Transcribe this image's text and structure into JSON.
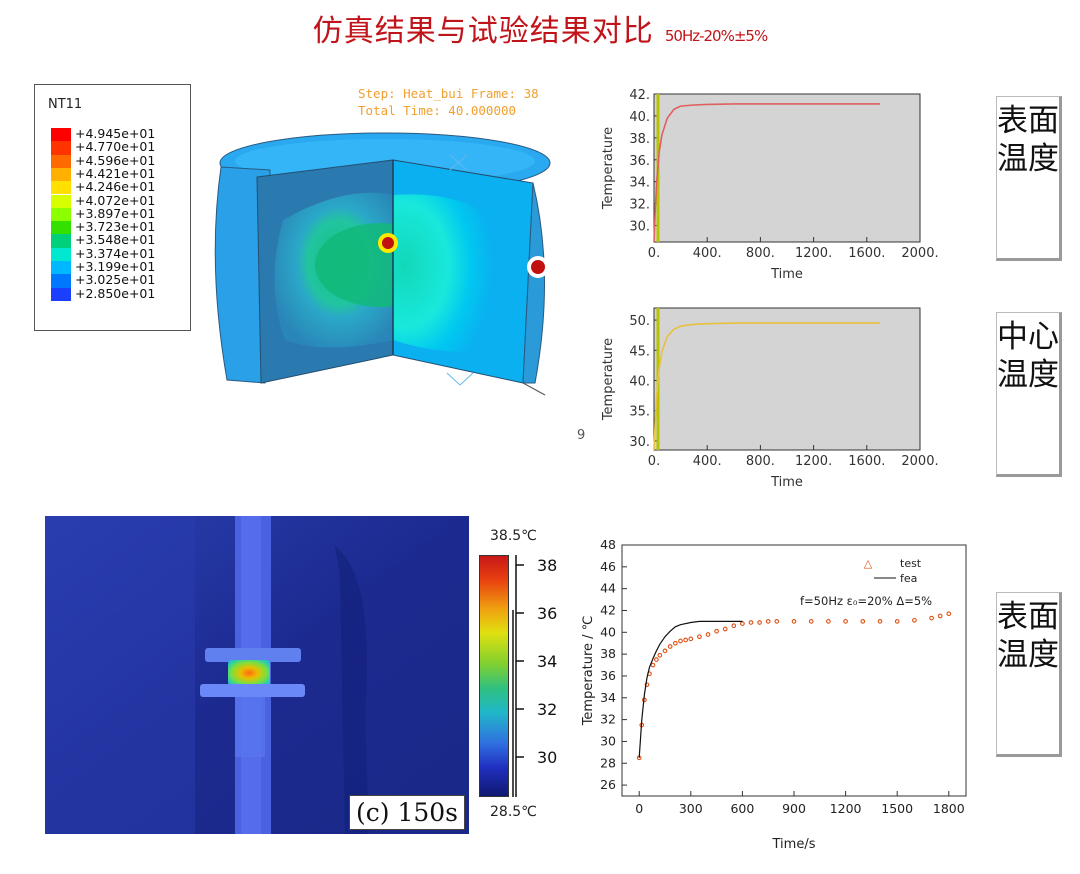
{
  "title": {
    "main": "仿真结果与试验结果对比",
    "sub": "50Hz-20%±5%"
  },
  "sim_legend": {
    "variable": "NT11",
    "entries": [
      "+4.945e+01",
      "+4.770e+01",
      "+4.596e+01",
      "+4.421e+01",
      "+4.246e+01",
      "+4.072e+01",
      "+3.897e+01",
      "+3.723e+01",
      "+3.548e+01",
      "+3.374e+01",
      "+3.199e+01",
      "+3.025e+01",
      "+2.850e+01"
    ],
    "colors": [
      "#ff0000",
      "#ff3300",
      "#ff6a00",
      "#ffb000",
      "#ffe000",
      "#d8ff00",
      "#8cff00",
      "#33e000",
      "#00d07a",
      "#00e8d0",
      "#00b8ff",
      "#0077ff",
      "#1a3fff"
    ]
  },
  "sim_header": {
    "step": "Step: Heat_bui Frame: 38",
    "total_time": "Total Time: 40.000000"
  },
  "side_labels": {
    "surface": "表面温度",
    "center": "中心温度",
    "surface2": "表面温度"
  },
  "stray_mark": "9",
  "thermal_image": {
    "caption": "(c) 150s",
    "scale_max": "38.5℃",
    "scale_min": "28.5℃",
    "scale_ticks": [
      "38",
      "36",
      "34",
      "32",
      "30"
    ]
  },
  "chart_data": [
    {
      "type": "line",
      "name": "surface-temperature-sim",
      "title": "",
      "xlabel": "Time",
      "ylabel": "Temperature",
      "xlim": [
        0,
        2000
      ],
      "ylim": [
        28.5,
        42
      ],
      "x_ticks": [
        "0.",
        "400.",
        "800.",
        "1200.",
        "1600.",
        "2000."
      ],
      "y_ticks": [
        "30.",
        "32.",
        "34.",
        "36.",
        "38.",
        "40.",
        "42."
      ],
      "series": [
        {
          "x": [
            0,
            10,
            20,
            40,
            60,
            100,
            150,
            200,
            300,
            400,
            600,
            800,
            1200,
            1700
          ],
          "y": [
            28.5,
            31.5,
            34.0,
            36.8,
            38.3,
            39.8,
            40.6,
            40.9,
            41.0,
            41.05,
            41.1,
            41.1,
            41.1,
            41.1
          ],
          "color": "#e06060"
        }
      ],
      "marker_line_x": 30,
      "marker_line_color": "#b8c400"
    },
    {
      "type": "line",
      "name": "center-temperature-sim",
      "title": "",
      "xlabel": "Time",
      "ylabel": "Temperature",
      "xlim": [
        0,
        2000
      ],
      "ylim": [
        28.5,
        52
      ],
      "x_ticks": [
        "0.",
        "400.",
        "800.",
        "1200.",
        "1600.",
        "2000."
      ],
      "y_ticks": [
        "30.",
        "35.",
        "40.",
        "45.",
        "50."
      ],
      "series": [
        {
          "x": [
            0,
            10,
            20,
            40,
            60,
            100,
            150,
            200,
            300,
            400,
            600,
            800,
            1200,
            1700
          ],
          "y": [
            28.5,
            33.5,
            37.5,
            42.2,
            44.8,
            47.3,
            48.5,
            49.0,
            49.3,
            49.4,
            49.5,
            49.5,
            49.5,
            49.5
          ],
          "color": "#e8c040"
        }
      ],
      "marker_line_x": 30,
      "marker_line_color": "#b8c400"
    },
    {
      "type": "scatter",
      "name": "surface-temperature-test-vs-fea",
      "title": "",
      "xlabel": "Time/s",
      "ylabel": "Temperature / ℃",
      "xlim": [
        -100,
        1900
      ],
      "ylim": [
        25,
        48
      ],
      "x_ticks": [
        "0",
        "300",
        "600",
        "900",
        "1200",
        "1500",
        "1800"
      ],
      "y_ticks": [
        "26",
        "28",
        "30",
        "32",
        "34",
        "36",
        "38",
        "40",
        "42",
        "44",
        "46",
        "48"
      ],
      "annotation": "f=50Hz  ε₀=20%  Δ=5%",
      "series": [
        {
          "name": "test",
          "style": "markers",
          "color": "#e05010",
          "x": [
            0,
            15,
            30,
            45,
            60,
            80,
            100,
            120,
            150,
            180,
            210,
            240,
            270,
            300,
            350,
            400,
            450,
            500,
            550,
            600,
            650,
            700,
            750,
            800,
            900,
            1000,
            1100,
            1200,
            1300,
            1400,
            1500,
            1600,
            1700,
            1750,
            1800
          ],
          "y": [
            28.5,
            31.5,
            33.8,
            35.2,
            36.2,
            37.0,
            37.5,
            37.9,
            38.3,
            38.7,
            39.0,
            39.2,
            39.3,
            39.4,
            39.6,
            39.8,
            40.1,
            40.3,
            40.6,
            40.8,
            40.9,
            40.9,
            41.0,
            41.0,
            41.0,
            41.0,
            41.0,
            41.0,
            41.0,
            41.0,
            41.0,
            41.1,
            41.3,
            41.5,
            41.7
          ]
        },
        {
          "name": "fea",
          "style": "line",
          "color": "#111111",
          "x": [
            0,
            15,
            30,
            45,
            60,
            80,
            100,
            120,
            150,
            180,
            210,
            240,
            300,
            350,
            400,
            500,
            600
          ],
          "y": [
            28.5,
            32.0,
            34.3,
            35.8,
            36.8,
            37.6,
            38.3,
            38.9,
            39.6,
            40.1,
            40.5,
            40.7,
            40.9,
            41.0,
            41.0,
            41.0,
            41.0
          ]
        }
      ]
    }
  ]
}
